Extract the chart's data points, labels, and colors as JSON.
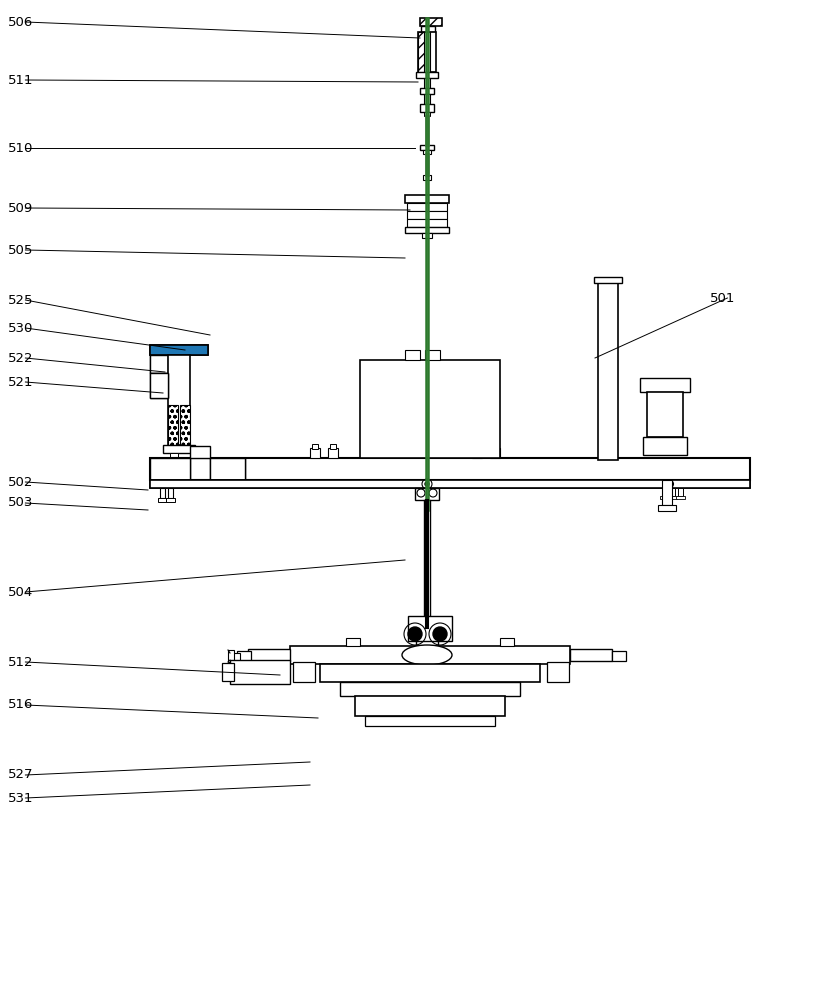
{
  "bg_color": "#ffffff",
  "lc": "#000000",
  "gc": "#2d7a2d",
  "annotations": [
    [
      "506",
      8,
      22,
      420,
      38
    ],
    [
      "511",
      8,
      80,
      418,
      82
    ],
    [
      "510",
      8,
      148,
      415,
      148
    ],
    [
      "509",
      8,
      208,
      410,
      210
    ],
    [
      "505",
      8,
      250,
      405,
      258
    ],
    [
      "525",
      8,
      300,
      210,
      335
    ],
    [
      "530",
      8,
      328,
      185,
      350
    ],
    [
      "522",
      8,
      358,
      165,
      372
    ],
    [
      "521",
      8,
      382,
      163,
      393
    ],
    [
      "501",
      710,
      298,
      595,
      358
    ],
    [
      "502",
      8,
      482,
      148,
      490
    ],
    [
      "503",
      8,
      503,
      148,
      510
    ],
    [
      "504",
      8,
      592,
      405,
      560
    ],
    [
      "512",
      8,
      662,
      280,
      675
    ],
    [
      "516",
      8,
      705,
      318,
      718
    ],
    [
      "527",
      8,
      775,
      310,
      762
    ],
    [
      "531",
      8,
      798,
      310,
      785
    ]
  ]
}
